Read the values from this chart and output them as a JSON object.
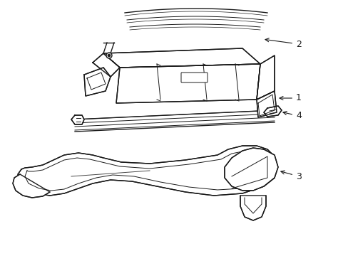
{
  "background_color": "#ffffff",
  "line_color": "#1a1a1a",
  "line_width": 1.0,
  "label_fontsize": 9,
  "figsize": [
    4.89,
    3.6
  ],
  "dpi": 100
}
